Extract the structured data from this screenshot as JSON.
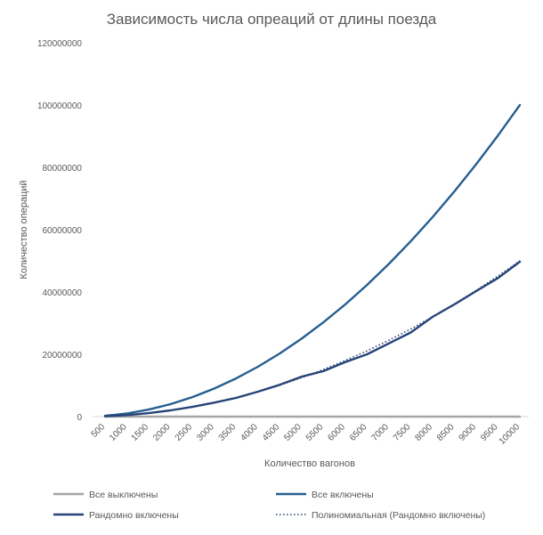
{
  "chart_data": {
    "type": "line",
    "title": "Зависимость числа опреаций от длины поезда",
    "xlabel": "Количество вагонов",
    "ylabel": "Количество операций",
    "x": [
      500,
      1000,
      1500,
      2000,
      2500,
      3000,
      3500,
      4000,
      4500,
      5000,
      5500,
      6000,
      6500,
      7000,
      7500,
      8000,
      8500,
      9000,
      9500,
      10000
    ],
    "ylim": [
      0,
      120000000
    ],
    "yticks": [
      "0",
      "20000000",
      "40000000",
      "60000000",
      "80000000",
      "100000000",
      "120000000"
    ],
    "grid": false,
    "legend_position": "bottom",
    "series": [
      {
        "name": "Все выключены",
        "color": "#a5a5a5",
        "style": "solid",
        "values": [
          0,
          0,
          0,
          0,
          0,
          0,
          0,
          0,
          0,
          0,
          0,
          0,
          0,
          0,
          0,
          0,
          0,
          0,
          0,
          0
        ]
      },
      {
        "name": "Все включены",
        "color": "#255e91",
        "style": "solid",
        "values": [
          250000,
          1000000,
          2250000,
          4000000,
          6250000,
          9000000,
          12250000,
          16000000,
          20250000,
          25000000,
          30250000,
          36000000,
          42250000,
          49000000,
          56250000,
          64000000,
          72250000,
          81000000,
          90250000,
          100000000
        ]
      },
      {
        "name": "Рандомно включены",
        "color": "#264478",
        "style": "solid",
        "values": [
          120000,
          500000,
          1100000,
          2000000,
          3100000,
          4500000,
          6000000,
          8000000,
          10200000,
          12800000,
          14600000,
          17500000,
          20000000,
          23500000,
          27000000,
          32000000,
          36000000,
          40300000,
          44500000,
          49700000
        ]
      },
      {
        "name": "Полиномиальная (Рандомно включены)",
        "color": "#264478",
        "style": "dotted",
        "values": [
          125000,
          500000,
          1125000,
          2000000,
          3125000,
          4500000,
          6125000,
          8000000,
          10125000,
          12500000,
          15125000,
          18000000,
          21125000,
          24500000,
          28125000,
          32000000,
          36125000,
          40500000,
          45125000,
          50000000
        ]
      }
    ]
  }
}
